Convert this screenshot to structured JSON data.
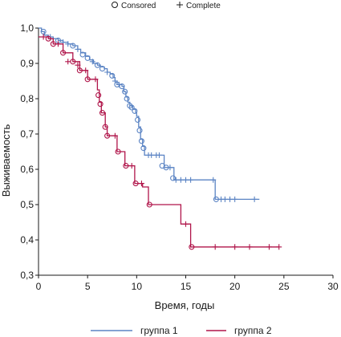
{
  "chart_data": {
    "type": "line",
    "subtype": "kaplan-meier survival",
    "title": "",
    "xlabel": "Время, годы",
    "ylabel": "Выживаемость",
    "xlim": [
      0,
      30
    ],
    "ylim": [
      0.3,
      1.0
    ],
    "x_ticks": [
      "0",
      "5",
      "10",
      "15",
      "20",
      "25",
      "30"
    ],
    "y_ticks": [
      "0,3",
      "0,4",
      "0,5",
      "0,6",
      "0,7",
      "0,8",
      "0,9",
      "1,0"
    ],
    "grid": false,
    "marker_legend": [
      {
        "label": "Consored",
        "marker": "circle"
      },
      {
        "label": "Complete",
        "marker": "plus"
      }
    ],
    "series_legend": [
      {
        "label": "группа 1",
        "color": "#5b84c4"
      },
      {
        "label": "группа 2",
        "color": "#b0154a"
      }
    ],
    "series": [
      {
        "name": "группа 1",
        "color": "#5b84c4",
        "steps": [
          [
            0,
            1.0
          ],
          [
            0.3,
            0.99
          ],
          [
            0.6,
            0.98
          ],
          [
            1,
            0.975
          ],
          [
            1.5,
            0.97
          ],
          [
            2,
            0.965
          ],
          [
            2.5,
            0.96
          ],
          [
            3,
            0.955
          ],
          [
            3.5,
            0.95
          ],
          [
            4,
            0.94
          ],
          [
            4.3,
            0.93
          ],
          [
            4.8,
            0.92
          ],
          [
            5.2,
            0.91
          ],
          [
            5.6,
            0.9
          ],
          [
            6,
            0.895
          ],
          [
            6.3,
            0.89
          ],
          [
            6.7,
            0.885
          ],
          [
            7,
            0.875
          ],
          [
            7.3,
            0.87
          ],
          [
            7.6,
            0.86
          ],
          [
            7.8,
            0.85
          ],
          [
            8,
            0.84
          ],
          [
            8.5,
            0.835
          ],
          [
            8.7,
            0.82
          ],
          [
            8.9,
            0.805
          ],
          [
            9.1,
            0.79
          ],
          [
            9.3,
            0.78
          ],
          [
            9.6,
            0.77
          ],
          [
            9.9,
            0.76
          ],
          [
            10,
            0.75
          ],
          [
            10.2,
            0.72
          ],
          [
            10.4,
            0.685
          ],
          [
            10.6,
            0.665
          ],
          [
            10.8,
            0.64
          ],
          [
            12.8,
            0.605
          ],
          [
            13.8,
            0.57
          ],
          [
            18,
            0.515
          ],
          [
            22.5,
            0.515
          ]
        ],
        "censored": [
          [
            0.5,
            0.99
          ],
          [
            2,
            0.965
          ],
          [
            3.5,
            0.95
          ],
          [
            4.5,
            0.925
          ],
          [
            5,
            0.915
          ],
          [
            6,
            0.895
          ],
          [
            6.5,
            0.885
          ],
          [
            7.5,
            0.865
          ],
          [
            8,
            0.84
          ],
          [
            8.5,
            0.835
          ],
          [
            8.8,
            0.82
          ],
          [
            9,
            0.8
          ],
          [
            9.3,
            0.78
          ],
          [
            9.5,
            0.775
          ],
          [
            9.8,
            0.765
          ],
          [
            10.1,
            0.74
          ],
          [
            10.3,
            0.71
          ],
          [
            10.5,
            0.68
          ],
          [
            10.7,
            0.66
          ],
          [
            12.6,
            0.61
          ],
          [
            13,
            0.605
          ],
          [
            13.7,
            0.575
          ],
          [
            18.1,
            0.515
          ]
        ],
        "complete": [
          [
            1.2,
            0.975
          ],
          [
            2.5,
            0.96
          ],
          [
            3,
            0.955
          ],
          [
            4,
            0.94
          ],
          [
            5.5,
            0.905
          ],
          [
            7,
            0.875
          ],
          [
            7.8,
            0.85
          ],
          [
            8.2,
            0.84
          ],
          [
            11.2,
            0.64
          ],
          [
            11.5,
            0.64
          ],
          [
            12,
            0.64
          ],
          [
            12.3,
            0.64
          ],
          [
            13.4,
            0.605
          ],
          [
            14,
            0.57
          ],
          [
            14.5,
            0.57
          ],
          [
            15,
            0.57
          ],
          [
            15.5,
            0.57
          ],
          [
            17.8,
            0.57
          ],
          [
            18.6,
            0.515
          ],
          [
            19,
            0.515
          ],
          [
            19.5,
            0.515
          ],
          [
            20,
            0.515
          ],
          [
            22,
            0.515
          ]
        ]
      },
      {
        "name": "группа 2",
        "color": "#b0154a",
        "steps": [
          [
            0,
            0.975
          ],
          [
            1,
            0.97
          ],
          [
            1.5,
            0.955
          ],
          [
            2.5,
            0.93
          ],
          [
            3.5,
            0.905
          ],
          [
            4.2,
            0.88
          ],
          [
            5,
            0.855
          ],
          [
            6,
            0.825
          ],
          [
            6.2,
            0.79
          ],
          [
            6.4,
            0.76
          ],
          [
            6.8,
            0.72
          ],
          [
            7,
            0.695
          ],
          [
            8,
            0.65
          ],
          [
            8.8,
            0.61
          ],
          [
            9.8,
            0.56
          ],
          [
            10.6,
            0.55
          ],
          [
            11.2,
            0.5
          ],
          [
            14.5,
            0.445
          ],
          [
            15.5,
            0.38
          ],
          [
            24.5,
            0.38
          ]
        ],
        "censored": [
          [
            1,
            0.97
          ],
          [
            1.5,
            0.955
          ],
          [
            2.5,
            0.93
          ],
          [
            3.5,
            0.905
          ],
          [
            4.2,
            0.88
          ],
          [
            5,
            0.855
          ],
          [
            6.1,
            0.81
          ],
          [
            6.3,
            0.785
          ],
          [
            6.5,
            0.76
          ],
          [
            6.8,
            0.72
          ],
          [
            7,
            0.695
          ],
          [
            8.1,
            0.65
          ],
          [
            8.9,
            0.61
          ],
          [
            9.9,
            0.56
          ],
          [
            11.3,
            0.5
          ],
          [
            15.6,
            0.38
          ]
        ],
        "complete": [
          [
            0.5,
            0.975
          ],
          [
            2,
            0.955
          ],
          [
            3,
            0.905
          ],
          [
            4,
            0.895
          ],
          [
            4.8,
            0.88
          ],
          [
            5.8,
            0.855
          ],
          [
            7.8,
            0.695
          ],
          [
            9.5,
            0.61
          ],
          [
            10.5,
            0.56
          ],
          [
            15,
            0.445
          ],
          [
            18,
            0.38
          ],
          [
            20,
            0.38
          ],
          [
            21.5,
            0.38
          ],
          [
            23.5,
            0.38
          ],
          [
            24.5,
            0.38
          ]
        ]
      }
    ]
  }
}
